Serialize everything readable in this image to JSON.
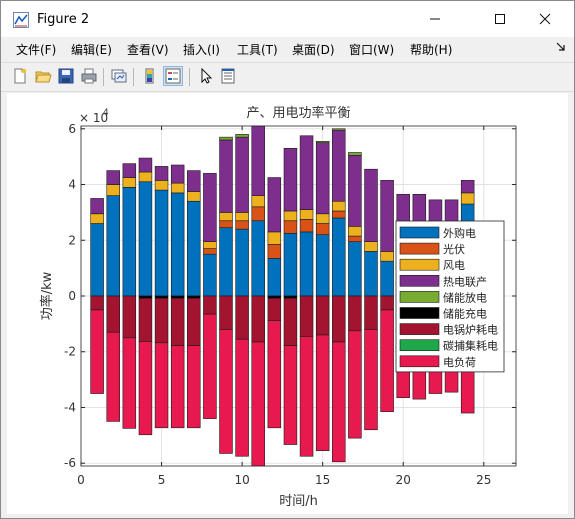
{
  "window": {
    "title": "Figure 2"
  },
  "menu": [
    "文件(F)",
    "编辑(E)",
    "查看(V)",
    "插入(I)",
    "工具(T)",
    "桌面(D)",
    "窗口(W)",
    "帮助(H)"
  ],
  "toolbar_icons": [
    "new-figure-icon",
    "open-file-icon",
    "save-icon",
    "print-icon",
    "link-plot-icon",
    "colorbar-icon",
    "legend-icon",
    "pointer-icon",
    "property-inspector-icon"
  ],
  "chart_data": {
    "type": "bar",
    "stacked": true,
    "title": "产、用电功率平衡",
    "xlabel": "时间/h",
    "ylabel": "功率/kw",
    "y_exponent_label": "× 10",
    "y_exponent_power": "4",
    "xlim": [
      0,
      27
    ],
    "ylim": [
      -6.1,
      6.1
    ],
    "y_scale_factor": 10000,
    "xticks": [
      0,
      5,
      10,
      15,
      20,
      25
    ],
    "yticks": [
      -6,
      -4,
      -2,
      0,
      2,
      4,
      6
    ],
    "grid": true,
    "legend_position": "right",
    "x": [
      1,
      2,
      3,
      4,
      5,
      6,
      7,
      8,
      9,
      10,
      11,
      12,
      13,
      14,
      15,
      16,
      17,
      18,
      19,
      20,
      21,
      22,
      23,
      24
    ],
    "series": [
      {
        "name": "外购电",
        "color": "#0072bd",
        "values": [
          2.6,
          3.6,
          3.9,
          4.1,
          3.8,
          3.7,
          3.4,
          1.5,
          2.45,
          2.4,
          2.7,
          1.35,
          2.25,
          2.3,
          2.2,
          2.8,
          1.95,
          1.6,
          1.25,
          0,
          0,
          0,
          0,
          3.3
        ]
      },
      {
        "name": "光伏",
        "color": "#d95319",
        "values": [
          0,
          0,
          0,
          0,
          0,
          0,
          0,
          0.2,
          0.25,
          0.3,
          0.5,
          0.5,
          0.45,
          0.45,
          0.4,
          0.25,
          0.2,
          0,
          0,
          0,
          0,
          0,
          0,
          0
        ]
      },
      {
        "name": "风电",
        "color": "#edb120",
        "values": [
          0.35,
          0.4,
          0.35,
          0.35,
          0.35,
          0.35,
          0.35,
          0.25,
          0.3,
          0.3,
          0.4,
          0.45,
          0.35,
          0.35,
          0.35,
          0.35,
          0.35,
          0.35,
          0.35,
          0,
          0,
          0,
          0,
          0.4
        ]
      },
      {
        "name": "热电联产",
        "color": "#7e2f8e",
        "values": [
          0.55,
          0.5,
          0.5,
          0.5,
          0.5,
          0.65,
          0.75,
          2.45,
          2.6,
          2.7,
          2.5,
          1.95,
          2.25,
          2.65,
          2.55,
          2.55,
          2.55,
          2.6,
          2.55,
          3.65,
          3.65,
          3.45,
          3.45,
          0.45
        ]
      },
      {
        "name": "储能放电",
        "color": "#77ac30",
        "values": [
          0,
          0,
          0,
          0,
          0,
          0,
          0,
          0,
          0.1,
          0.1,
          0,
          0,
          0,
          0,
          0.05,
          0.05,
          0.1,
          0,
          0,
          0,
          0,
          0,
          0,
          0
        ]
      },
      {
        "name": "储能充电",
        "color": "#000000",
        "values": [
          0,
          0,
          0,
          -0.08,
          -0.08,
          -0.08,
          -0.08,
          0,
          0,
          0,
          0,
          -0.08,
          -0.08,
          0,
          0,
          0,
          0,
          0,
          0,
          0,
          0,
          0,
          0,
          0
        ]
      },
      {
        "name": "电锅炉耗电",
        "color": "#a2142f",
        "values": [
          -0.5,
          -1.3,
          -1.5,
          -1.55,
          -1.6,
          -1.7,
          -1.7,
          -0.65,
          -1.2,
          -1.55,
          -1.65,
          -0.8,
          -1.7,
          -1.45,
          -1.4,
          -1.65,
          -1.25,
          -1.2,
          -0.5,
          0,
          0,
          0,
          0,
          -0.7
        ]
      },
      {
        "name": "碳捕集耗电",
        "color": "#1fa84a",
        "values": [
          0,
          0,
          0,
          0,
          0,
          0,
          0,
          0,
          0,
          0,
          0,
          0,
          0,
          0,
          0,
          0,
          0,
          0,
          0,
          0,
          0,
          0,
          0,
          0
        ]
      },
      {
        "name": "电负荷",
        "color": "#e8194f",
        "values": [
          -3.0,
          -3.2,
          -3.25,
          -3.35,
          -3.05,
          -2.95,
          -2.95,
          -3.75,
          -4.45,
          -4.2,
          -4.45,
          -3.85,
          -3.55,
          -4.3,
          -4.15,
          -4.3,
          -3.85,
          -3.6,
          -3.65,
          -3.65,
          -3.7,
          -3.5,
          -3.45,
          -3.5
        ]
      }
    ]
  }
}
